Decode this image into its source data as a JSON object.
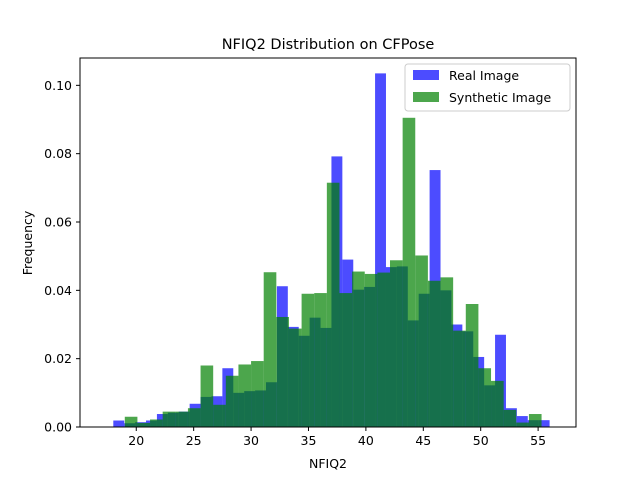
{
  "chart_data": {
    "type": "bar",
    "title": "NFIQ2 Distribution on CFPose",
    "xlabel": "NFIQ2",
    "ylabel": "Frequency",
    "xlim": [
      15.1,
      58.3
    ],
    "ylim": [
      0,
      0.108
    ],
    "xticks": [
      "20",
      "25",
      "30",
      "35",
      "40",
      "45",
      "50",
      "55"
    ],
    "yticks": [
      "0.00",
      "0.02",
      "0.04",
      "0.06",
      "0.08",
      "0.10"
    ],
    "legend_position": "top-right",
    "grid": false,
    "series": [
      {
        "name": "Real Image",
        "color": "#0000ff",
        "opacity": 0.7,
        "bins": [
          [
            18.0,
            18.95,
            0.0019
          ],
          [
            18.95,
            19.9,
            0.0011
          ],
          [
            19.9,
            20.85,
            0.0014
          ],
          [
            20.85,
            21.8,
            0.0019
          ],
          [
            21.8,
            22.75,
            0.0038
          ],
          [
            22.75,
            23.7,
            0.0042
          ],
          [
            23.7,
            24.65,
            0.0045
          ],
          [
            24.65,
            25.6,
            0.0068
          ],
          [
            25.6,
            26.55,
            0.0088
          ],
          [
            26.55,
            27.5,
            0.009
          ],
          [
            27.5,
            28.45,
            0.0172
          ],
          [
            28.45,
            29.4,
            0.01
          ],
          [
            29.4,
            30.35,
            0.0105
          ],
          [
            30.35,
            31.3,
            0.0107
          ],
          [
            31.3,
            32.25,
            0.0131
          ],
          [
            32.25,
            33.2,
            0.0412
          ],
          [
            33.2,
            34.15,
            0.0293
          ],
          [
            34.15,
            35.1,
            0.0267
          ],
          [
            35.1,
            36.05,
            0.032
          ],
          [
            36.05,
            37.0,
            0.029
          ],
          [
            37.0,
            37.95,
            0.0792
          ],
          [
            37.95,
            38.9,
            0.049
          ],
          [
            38.9,
            39.85,
            0.0402
          ],
          [
            39.85,
            40.8,
            0.041
          ],
          [
            40.8,
            41.75,
            0.1035
          ],
          [
            41.75,
            42.7,
            0.0468
          ],
          [
            42.7,
            43.65,
            0.047
          ],
          [
            43.65,
            44.6,
            0.0312
          ],
          [
            44.6,
            45.55,
            0.039
          ],
          [
            45.55,
            46.5,
            0.0752
          ],
          [
            46.5,
            47.45,
            0.04
          ],
          [
            47.45,
            48.4,
            0.03
          ],
          [
            48.4,
            49.35,
            0.028
          ],
          [
            49.35,
            50.3,
            0.0205
          ],
          [
            50.3,
            51.25,
            0.0122
          ],
          [
            51.25,
            52.2,
            0.027
          ],
          [
            52.2,
            53.15,
            0.0055
          ],
          [
            53.15,
            54.1,
            0.0032
          ],
          [
            54.1,
            55.05,
            0.002
          ],
          [
            55.05,
            56.0,
            0.002
          ]
        ]
      },
      {
        "name": "Synthetic Image",
        "color": "#008000",
        "opacity": 0.7,
        "bins": [
          [
            19.0,
            20.1,
            0.003
          ],
          [
            20.1,
            21.2,
            0.0012
          ],
          [
            21.2,
            22.3,
            0.0022
          ],
          [
            22.3,
            23.4,
            0.0045
          ],
          [
            23.4,
            24.5,
            0.0045
          ],
          [
            24.5,
            25.6,
            0.0055
          ],
          [
            25.6,
            26.7,
            0.018
          ],
          [
            26.7,
            27.8,
            0.0065
          ],
          [
            27.8,
            28.9,
            0.015
          ],
          [
            28.9,
            30.0,
            0.0183
          ],
          [
            30.0,
            31.1,
            0.0193
          ],
          [
            31.1,
            32.2,
            0.0453
          ],
          [
            32.2,
            33.3,
            0.0322
          ],
          [
            33.3,
            34.4,
            0.0288
          ],
          [
            34.4,
            35.5,
            0.039
          ],
          [
            35.5,
            36.6,
            0.0392
          ],
          [
            36.6,
            37.7,
            0.0715
          ],
          [
            37.7,
            38.8,
            0.0392
          ],
          [
            38.8,
            39.9,
            0.0455
          ],
          [
            39.9,
            41.0,
            0.0448
          ],
          [
            41.0,
            42.1,
            0.0452
          ],
          [
            42.1,
            43.2,
            0.0488
          ],
          [
            43.2,
            44.3,
            0.0905
          ],
          [
            44.3,
            45.4,
            0.0502
          ],
          [
            45.4,
            46.5,
            0.0428
          ],
          [
            46.5,
            47.6,
            0.0438
          ],
          [
            47.6,
            48.7,
            0.0282
          ],
          [
            48.7,
            49.8,
            0.036
          ],
          [
            49.8,
            50.9,
            0.0172
          ],
          [
            50.9,
            52.0,
            0.0135
          ],
          [
            52.0,
            53.1,
            0.005
          ],
          [
            53.1,
            54.2,
            0.0013
          ],
          [
            54.2,
            55.3,
            0.0038
          ]
        ]
      }
    ]
  }
}
